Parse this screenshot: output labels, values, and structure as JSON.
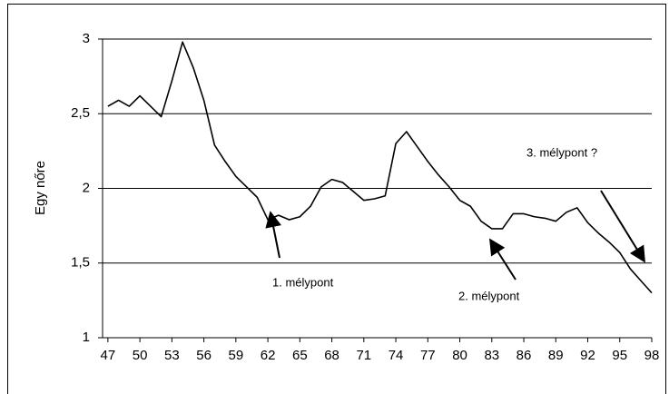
{
  "chart_data": {
    "type": "line",
    "y_label": "Egy nőre",
    "x": [
      47,
      48,
      49,
      50,
      51,
      52,
      53,
      54,
      55,
      56,
      57,
      58,
      59,
      60,
      61,
      62,
      63,
      64,
      65,
      66,
      67,
      68,
      69,
      70,
      71,
      72,
      73,
      74,
      75,
      76,
      77,
      78,
      79,
      80,
      81,
      82,
      83,
      84,
      85,
      86,
      87,
      88,
      89,
      90,
      91,
      92,
      93,
      94,
      95,
      96,
      97,
      98
    ],
    "series": [
      {
        "color": "#000000",
        "values": [
          2.55,
          2.59,
          2.55,
          2.62,
          2.55,
          2.48,
          2.72,
          2.98,
          2.81,
          2.59,
          2.29,
          2.18,
          2.08,
          2.01,
          1.94,
          1.79,
          1.82,
          1.79,
          1.81,
          1.88,
          2.01,
          2.06,
          2.04,
          1.98,
          1.92,
          1.93,
          1.95,
          2.3,
          2.38,
          2.28,
          2.18,
          2.09,
          2.01,
          1.92,
          1.88,
          1.78,
          1.73,
          1.73,
          1.83,
          1.83,
          1.81,
          1.8,
          1.78,
          1.84,
          1.87,
          1.77,
          1.7,
          1.64,
          1.57,
          1.46,
          1.38,
          1.3
        ]
      }
    ],
    "xlim": [
      46.5,
      98
    ],
    "xticks": [
      47,
      50,
      53,
      56,
      59,
      62,
      65,
      68,
      71,
      74,
      77,
      80,
      83,
      86,
      89,
      92,
      95,
      98
    ],
    "ylim": [
      1,
      3
    ],
    "yticks": [
      1,
      {
        "value": 1.5,
        "label": "1,5"
      },
      2,
      {
        "value": 2.5,
        "label": "2,5"
      },
      3
    ],
    "grid": true,
    "annotations": [
      {
        "text": "1. mélypont"
      },
      {
        "text": "2. mélypont"
      },
      {
        "text": "3. mélypont ?"
      }
    ]
  }
}
